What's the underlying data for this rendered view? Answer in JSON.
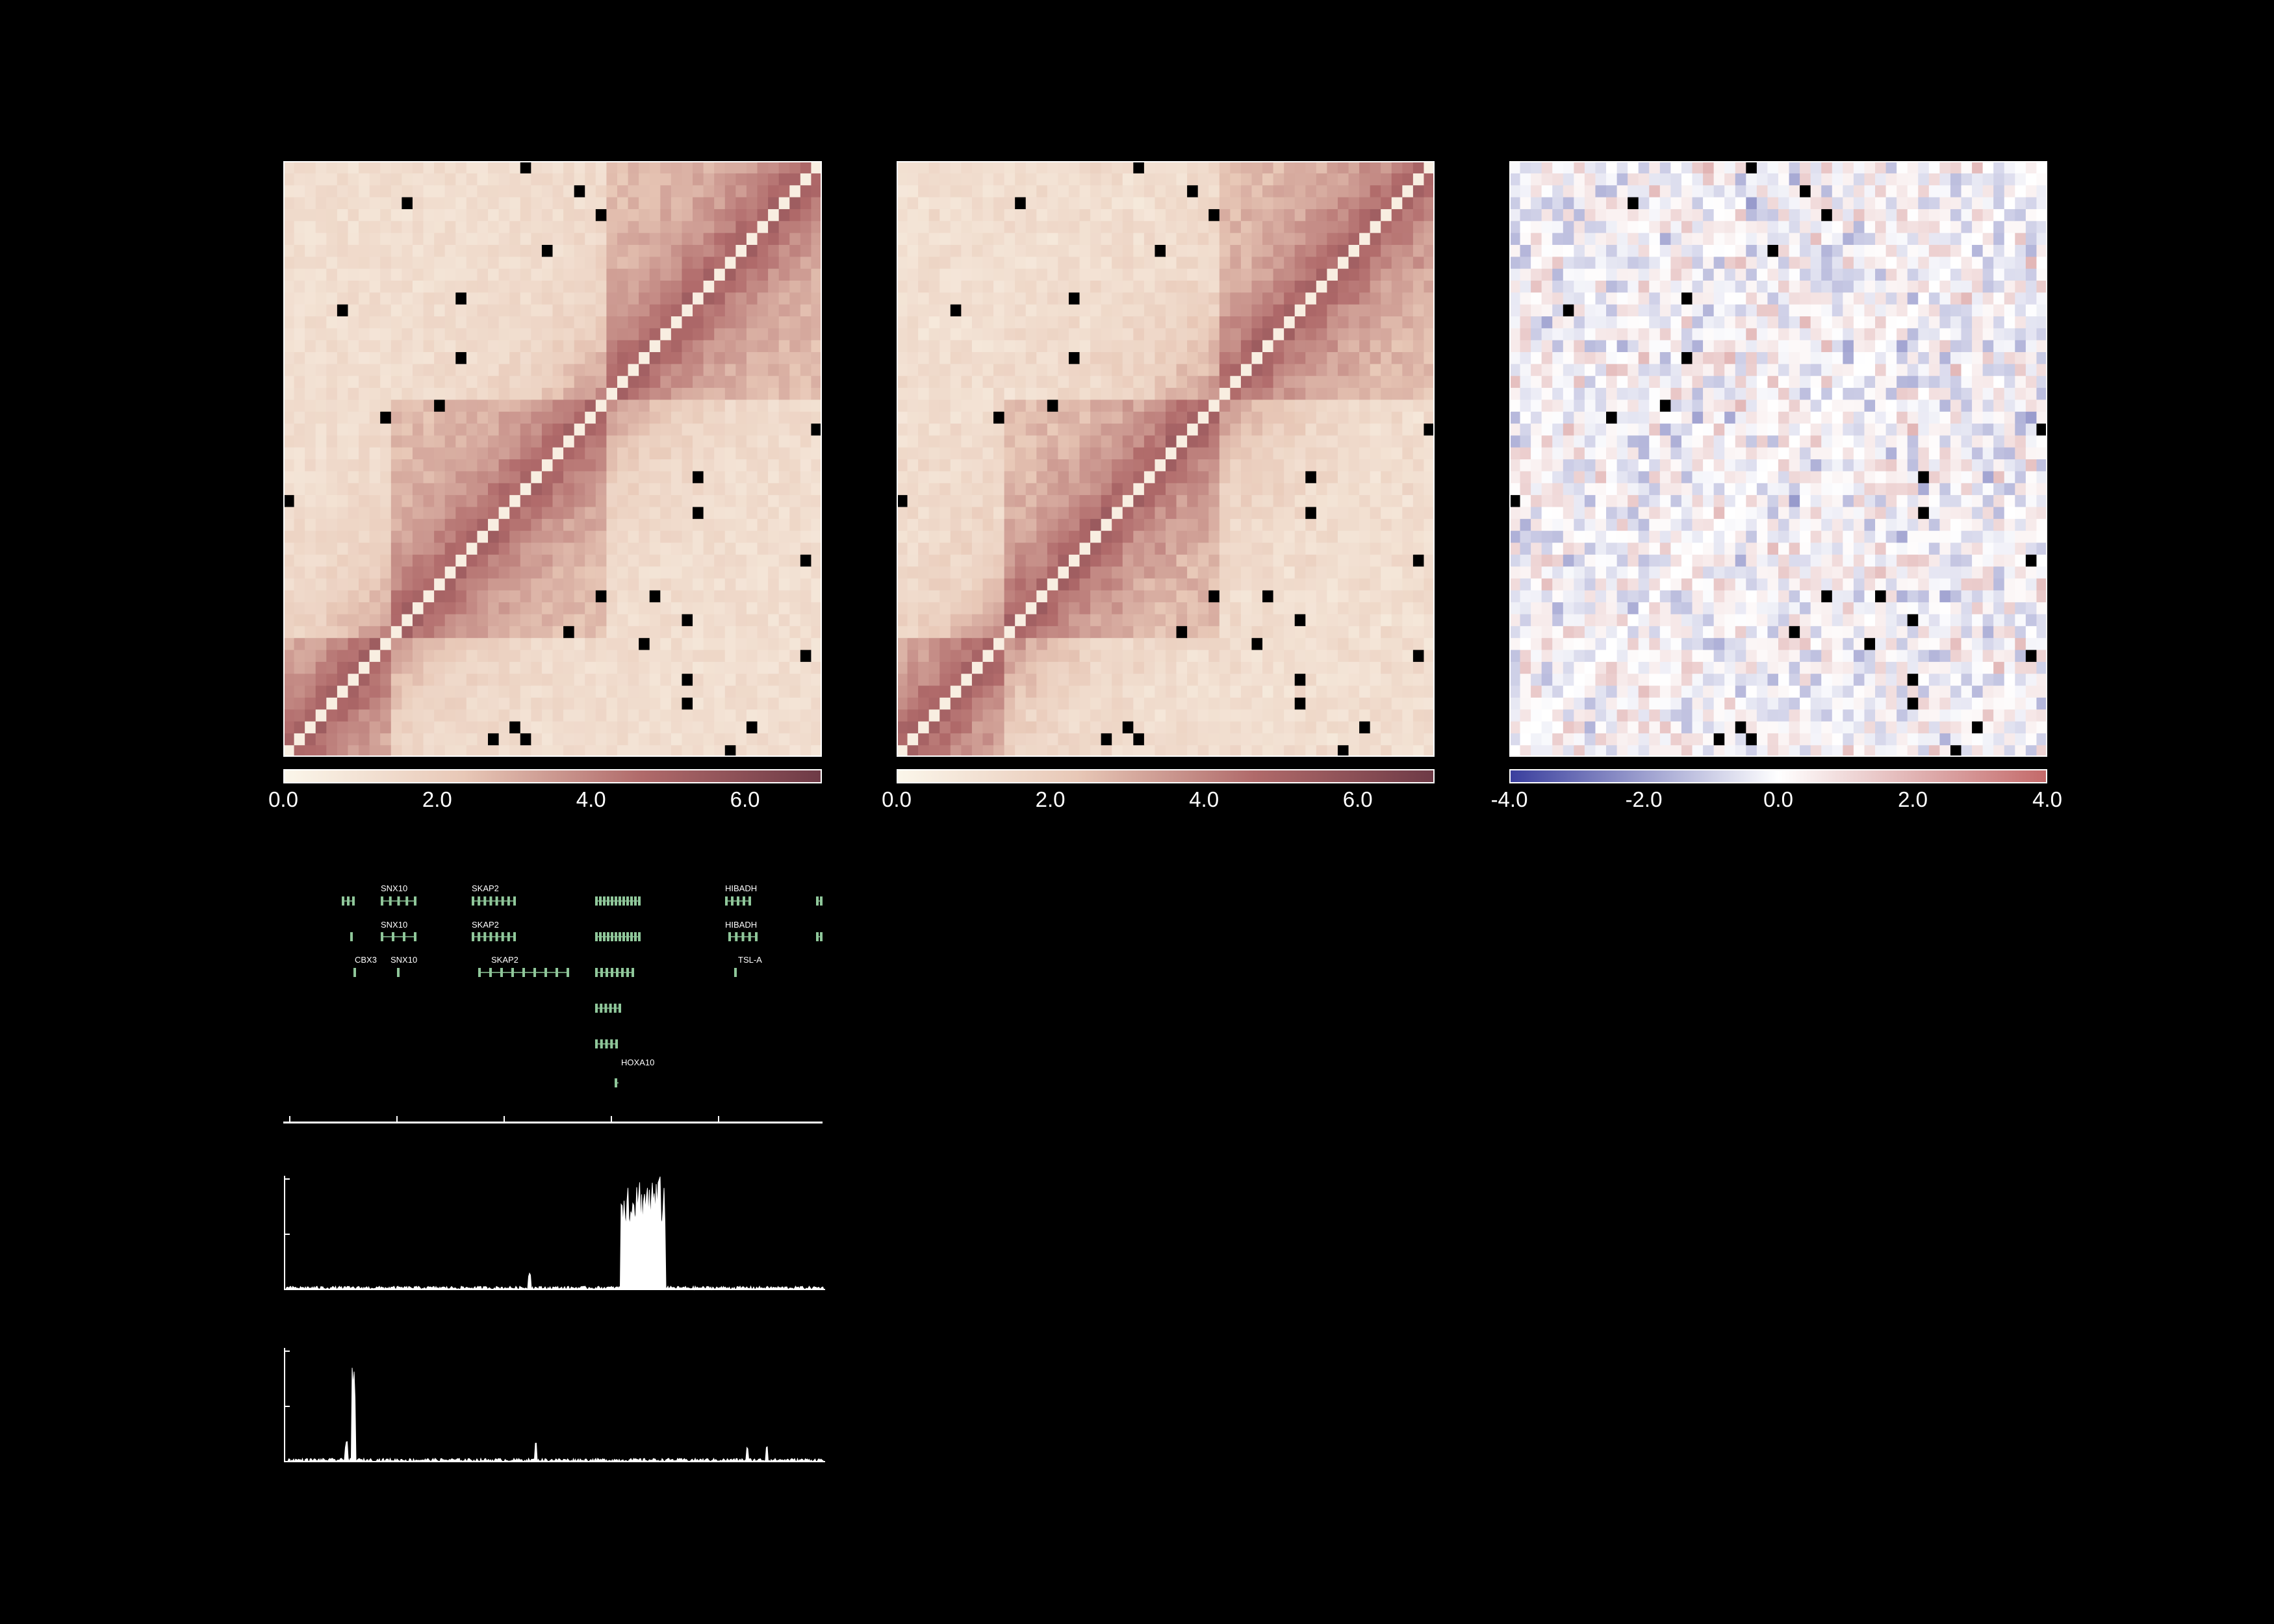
{
  "colors": {
    "background": "#000000",
    "seq_low": "#fbf6ea",
    "seq_mid": "#e8c8b7",
    "seq_high": "#b06a6a",
    "seq_max": "#6e3a46",
    "div_neg": "#3a3f9e",
    "div_zero": "#ffffff",
    "div_pos": "#c46a6a",
    "missing": "#000000",
    "gene": "#8fc79a",
    "track": "#ffffff"
  },
  "heatmaps": [
    {
      "id": "heatmap-1",
      "scale": "sequential",
      "range": [
        0,
        7
      ],
      "colorbar_ticks": [
        "0.0",
        "2.0",
        "4.0",
        "6.0"
      ],
      "colorbar_values": [
        0,
        2,
        4,
        6
      ]
    },
    {
      "id": "heatmap-2",
      "scale": "sequential",
      "range": [
        0,
        7
      ],
      "colorbar_ticks": [
        "0.0",
        "2.0",
        "4.0",
        "6.0"
      ],
      "colorbar_values": [
        0,
        2,
        4,
        6
      ]
    },
    {
      "id": "heatmap-diff",
      "scale": "diverging",
      "range": [
        -4,
        4
      ],
      "colorbar_ticks": [
        "-4.0",
        "-2.0",
        "0.0",
        "2.0",
        "4.0"
      ],
      "colorbar_values": [
        -4,
        -2,
        0,
        2,
        4
      ]
    }
  ],
  "genes": {
    "labels": [
      "SNX10",
      "SKAP2",
      "SNX10",
      "SKAP2",
      "CBX3",
      "SNX10",
      "SKAP2",
      "HIBADH",
      "HIBADH",
      "TSL-A",
      "HOXA10"
    ]
  },
  "tracks": {
    "count": 2
  }
}
